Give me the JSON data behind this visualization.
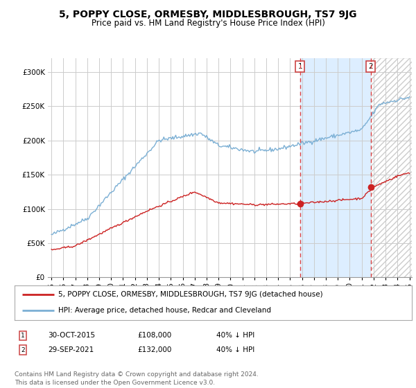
{
  "title": "5, POPPY CLOSE, ORMESBY, MIDDLESBROUGH, TS7 9JG",
  "subtitle": "Price paid vs. HM Land Registry's House Price Index (HPI)",
  "ylim": [
    0,
    320000
  ],
  "yticks": [
    0,
    50000,
    100000,
    150000,
    200000,
    250000,
    300000
  ],
  "ytick_labels": [
    "£0",
    "£50K",
    "£100K",
    "£150K",
    "£200K",
    "£250K",
    "£300K"
  ],
  "hpi_color": "#7bafd4",
  "price_color": "#cc2222",
  "marker1_date": 2015.83,
  "marker1_price": 108000,
  "marker1_hpi_pct": "40% ↓ HPI",
  "marker1_date_str": "30-OCT-2015",
  "marker2_date": 2021.75,
  "marker2_price": 132000,
  "marker2_hpi_pct": "40% ↓ HPI",
  "marker2_date_str": "29-SEP-2021",
  "vline_color": "#dd4444",
  "shade_color": "#ddeeff",
  "hatch_color": "#cccccc",
  "legend_line1": "5, POPPY CLOSE, ORMESBY, MIDDLESBROUGH, TS7 9JG (detached house)",
  "legend_line2": "HPI: Average price, detached house, Redcar and Cleveland",
  "footer": "Contains HM Land Registry data © Crown copyright and database right 2024.\nThis data is licensed under the Open Government Licence v3.0.",
  "background_color": "#ffffff",
  "grid_color": "#cccccc",
  "title_fontsize": 10,
  "subtitle_fontsize": 8.5,
  "tick_fontsize": 7.5,
  "legend_fontsize": 7.5,
  "footer_fontsize": 6.5,
  "xmin": 1995,
  "xmax": 2025
}
